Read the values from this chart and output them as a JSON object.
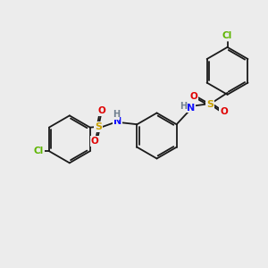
{
  "background_color": "#ececec",
  "bond_color": "#1a1a1a",
  "atom_colors": {
    "Cl": "#5db500",
    "S": "#c8a000",
    "O": "#e00000",
    "N": "#1010ff",
    "H": "#708090",
    "C": "#1a1a1a"
  },
  "figsize": [
    3.0,
    3.0
  ],
  "dpi": 100
}
